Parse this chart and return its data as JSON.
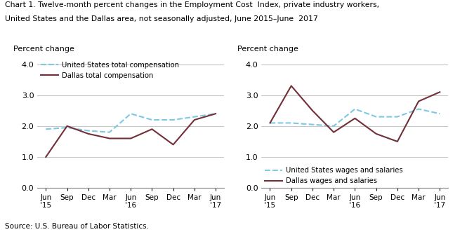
{
  "title_line1": "Chart 1. Twelve-month percent changes in the Employment Cost  Index, private industry workers,",
  "title_line2": "United States and the Dallas area, not seasonally adjusted, June 2015–June  2017",
  "source": "Source: U.S. Bureau of Labor Statistics.",
  "ylabel": "Percent change",
  "x_labels": [
    "Jun\n'15",
    "Sep",
    "Dec",
    "Mar",
    "Jun\n'16",
    "Sep",
    "Dec",
    "Mar",
    "Jun\n'17"
  ],
  "ylim": [
    0.0,
    4.2
  ],
  "yticks": [
    0.0,
    1.0,
    2.0,
    3.0,
    4.0
  ],
  "left_chart": {
    "us_total_comp": [
      1.9,
      1.95,
      1.85,
      1.8,
      2.4,
      2.2,
      2.2,
      2.3,
      2.4
    ],
    "dallas_total_comp": [
      1.0,
      2.0,
      1.75,
      1.6,
      1.6,
      1.9,
      1.4,
      2.2,
      2.4
    ],
    "legend1": "United States total compensation",
    "legend2": "Dallas total compensation"
  },
  "right_chart": {
    "us_wages_salaries": [
      2.1,
      2.1,
      2.05,
      2.0,
      2.55,
      2.3,
      2.3,
      2.55,
      2.4
    ],
    "dallas_wages_salaries": [
      2.1,
      3.3,
      2.5,
      1.8,
      2.25,
      1.75,
      1.5,
      2.8,
      3.1
    ],
    "legend1": "United States wages and salaries",
    "legend2": "Dallas wages and salaries"
  },
  "us_color": "#7ec8e3",
  "dallas_color": "#722f37",
  "linewidth": 1.5,
  "grid_color": "#c8c8c8"
}
